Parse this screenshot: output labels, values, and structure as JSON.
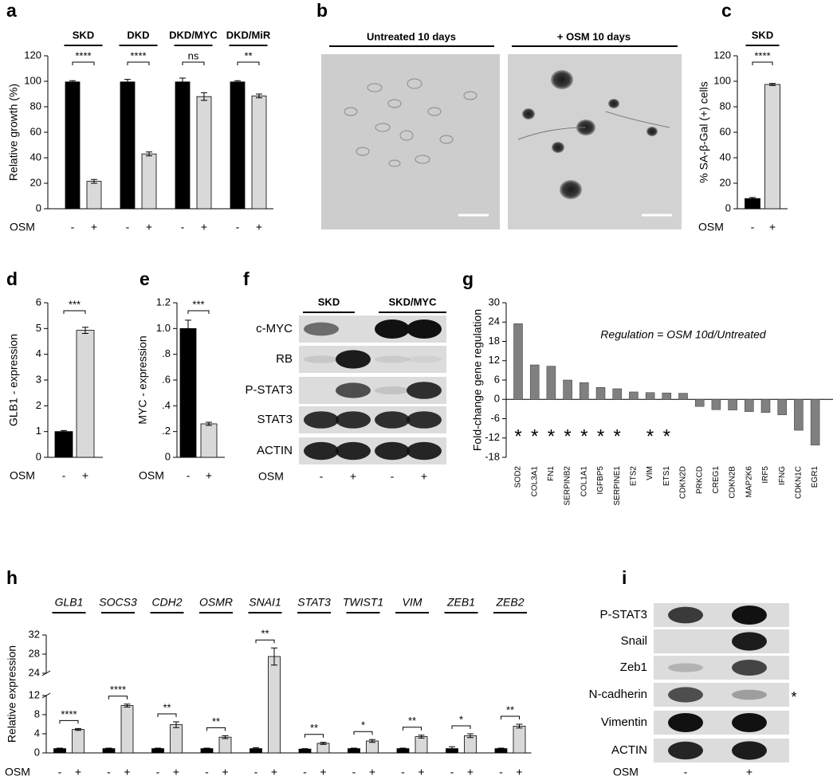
{
  "chart_data": [
    {
      "panel": "a",
      "type": "bar",
      "ylabel": "Relative growth (%)",
      "categories": [
        "SKD",
        "DKD",
        "DKD/MYC",
        "DKD/MiR"
      ],
      "factor": "OSM",
      "series": [
        {
          "name": "-",
          "color": "#000000",
          "values": [
            99.5,
            99.5,
            99.5,
            99.5
          ],
          "errors": [
            1,
            2,
            3,
            1
          ]
        },
        {
          "name": "+",
          "color": "#d9d9d9",
          "values": [
            21.5,
            43,
            88,
            88.5
          ],
          "errors": [
            1.5,
            1.5,
            3,
            1.5
          ]
        }
      ],
      "significance": [
        "****",
        "****",
        "ns",
        "**"
      ],
      "ylim": [
        0,
        120
      ],
      "yticks": [
        0,
        20,
        40,
        60,
        80,
        100,
        120
      ]
    },
    {
      "panel": "c",
      "type": "bar",
      "ylabel": "% SA-β-Gal (+) cells",
      "categories": [
        "SKD"
      ],
      "factor": "OSM",
      "series": [
        {
          "name": "-",
          "color": "#000000",
          "values": [
            8
          ],
          "errors": [
            0.8
          ]
        },
        {
          "name": "+",
          "color": "#d9d9d9",
          "values": [
            97.5
          ],
          "errors": [
            0.8
          ]
        }
      ],
      "significance": [
        "****"
      ],
      "ylim": [
        0,
        120
      ],
      "yticks": [
        0,
        20,
        40,
        60,
        80,
        100,
        120
      ]
    },
    {
      "panel": "d",
      "type": "bar",
      "ylabel": "GLB1 - expression",
      "categories": [
        null
      ],
      "factor": "OSM",
      "series": [
        {
          "name": "-",
          "color": "#000000",
          "values": [
            1
          ],
          "errors": [
            0.04
          ]
        },
        {
          "name": "+",
          "color": "#d9d9d9",
          "values": [
            4.93
          ],
          "errors": [
            0.12
          ]
        }
      ],
      "significance": [
        "***"
      ],
      "ylim": [
        0,
        6
      ],
      "yticks": [
        0,
        1,
        2,
        3,
        4,
        5,
        6
      ]
    },
    {
      "panel": "e",
      "type": "bar",
      "ylabel": "MYC - expression",
      "categories": [
        null
      ],
      "factor": "OSM",
      "series": [
        {
          "name": "-",
          "color": "#000000",
          "values": [
            1
          ],
          "errors": [
            0.065
          ]
        },
        {
          "name": "+",
          "color": "#d9d9d9",
          "values": [
            0.26
          ],
          "errors": [
            0.012
          ]
        }
      ],
      "significance": [
        "***"
      ],
      "ylim": [
        0,
        1.2
      ],
      "yticks": [
        0,
        {
          "value": 0.2,
          "label": ".2"
        },
        {
          "value": 0.4,
          "label": ".4"
        },
        {
          "value": 0.6,
          "label": ".6"
        },
        {
          "value": 0.8,
          "label": ".8"
        },
        {
          "value": 1,
          "label": "1.0"
        },
        {
          "value": 1.2,
          "label": "1.2"
        }
      ]
    },
    {
      "panel": "g",
      "type": "bar",
      "ylabel": "Fold-change gene regulation",
      "annotation": "Regulation = OSM 10d/Untreated",
      "color": "#808080",
      "categories": [
        "SOD2",
        "COL3A1",
        "FN1",
        "SERPINB2",
        "COL1A1",
        "IGFBP5",
        "SERPINE1",
        "ETS2",
        "VIM",
        "ETS1",
        "CDKN2D",
        "PRKCD",
        "CREG1",
        "CDKN2B",
        "MAP2K6",
        "IRF5",
        "IFNG",
        "CDKN1C",
        "EGR1"
      ],
      "values": [
        23.5,
        10.7,
        10.3,
        6,
        5.2,
        3.7,
        3.3,
        2.3,
        2.1,
        2,
        1.9,
        -2.2,
        -3.2,
        -3.3,
        -3.8,
        -4.1,
        -4.8,
        -9.6,
        -14.2
      ],
      "markers": [
        "*",
        "*",
        "*",
        "*",
        "*",
        "*",
        "*",
        null,
        "*",
        "*",
        null,
        null,
        null,
        null,
        null,
        null,
        null,
        null,
        null
      ],
      "ylim": [
        -18,
        30
      ],
      "yticks": [
        -18,
        -12,
        -6,
        0,
        6,
        12,
        18,
        24,
        30
      ]
    },
    {
      "panel": "h",
      "type": "bar",
      "ylabel": "Relative expression",
      "categories": [
        "GLB1",
        "SOCS3",
        "CDH2",
        "OSMR",
        "SNAI1",
        "STAT3",
        "TWIST1",
        "VIM",
        "ZEB1",
        "ZEB2"
      ],
      "factor": "OSM",
      "series": [
        {
          "name": "-",
          "color": "#000000",
          "values": [
            0.9,
            0.9,
            0.9,
            0.9,
            0.9,
            0.8,
            0.9,
            0.9,
            0.9,
            0.9
          ],
          "errors": [
            0.1,
            0.1,
            0.1,
            0.1,
            0.2,
            0.1,
            0.1,
            0.1,
            0.4,
            0.1
          ]
        },
        {
          "name": "+",
          "color": "#d9d9d9",
          "values": [
            4.9,
            9.9,
            5.9,
            3.3,
            27.5,
            2,
            2.5,
            3.4,
            3.6,
            5.6
          ],
          "errors": [
            0.2,
            0.3,
            0.6,
            0.3,
            1.8,
            0.2,
            0.3,
            0.3,
            0.4,
            0.4
          ]
        }
      ],
      "significance": [
        "****",
        "****",
        "**",
        "**",
        "**",
        "**",
        "*",
        "**",
        "*",
        "**"
      ],
      "ylim": [
        0,
        32
      ],
      "axis_break": [
        12,
        24
      ],
      "yticks": [
        0,
        4,
        8,
        12,
        24,
        28,
        32
      ]
    }
  ],
  "micrographs": {
    "panel": "b",
    "images": [
      "Untreated 10 days",
      "+ OSM 10 days"
    ]
  },
  "blots": [
    {
      "panel": "f",
      "groups": [
        "SKD",
        "SKD/MYC"
      ],
      "rows": [
        "c-MYC",
        "RB",
        "P-STAT3",
        "STAT3",
        "ACTIN"
      ],
      "factor": "OSM",
      "lanes": [
        "-",
        "+",
        "-",
        "+"
      ]
    },
    {
      "panel": "i",
      "rows": [
        "P-STAT3",
        "Snail",
        "Zeb1",
        "N-cadherin",
        "Vimentin",
        "ACTIN"
      ],
      "factor": "OSM",
      "lanes": [
        "-",
        "+"
      ],
      "note": "*"
    }
  ]
}
